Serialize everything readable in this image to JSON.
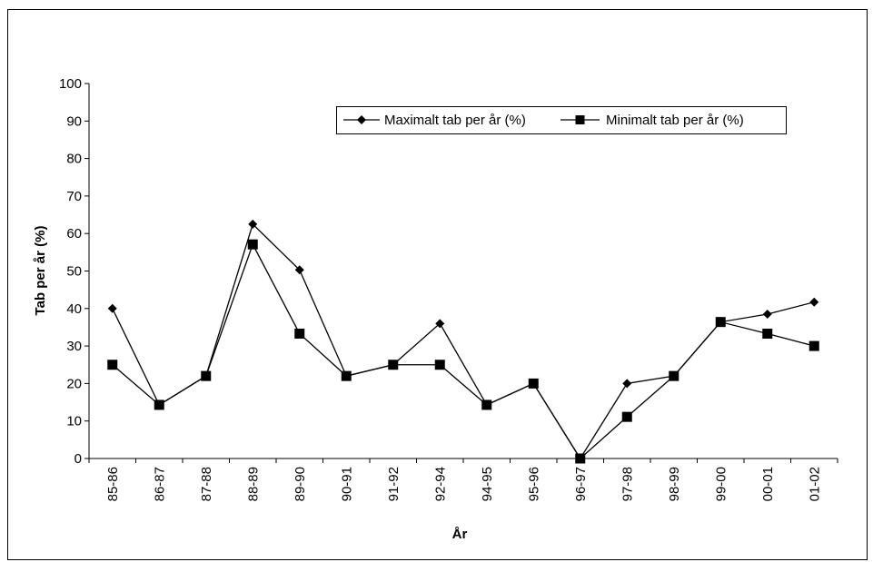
{
  "chart_data": {
    "type": "line",
    "title": "",
    "xlabel": "År",
    "ylabel": "Tab per år (%)",
    "ylim": [
      0,
      100
    ],
    "yticks": [
      0,
      10,
      20,
      30,
      40,
      50,
      60,
      70,
      80,
      90,
      100
    ],
    "grid": false,
    "legend_position": "top-right",
    "categories": [
      "85-86",
      "86-87",
      "87-88",
      "88-89",
      "89-90",
      "90-91",
      "91-92",
      "92-94",
      "94-95",
      "95-96",
      "96-97",
      "97-98",
      "98-99",
      "99-00",
      "00-01",
      "01-02"
    ],
    "series": [
      {
        "name": "Maximalt tab per år (%)",
        "marker": "diamond",
        "color": "#000000",
        "values": [
          40,
          14.3,
          22,
          62.5,
          50.3,
          22,
          25,
          36,
          14.3,
          20,
          0,
          20,
          22,
          36.4,
          38.5,
          41.7
        ]
      },
      {
        "name": "Minimalt tab per år (%)",
        "marker": "square",
        "color": "#000000",
        "values": [
          25,
          14.3,
          22,
          57.1,
          33.3,
          22,
          25,
          25,
          14.3,
          20,
          0,
          11.1,
          22,
          36.4,
          33.3,
          30
        ]
      }
    ]
  }
}
